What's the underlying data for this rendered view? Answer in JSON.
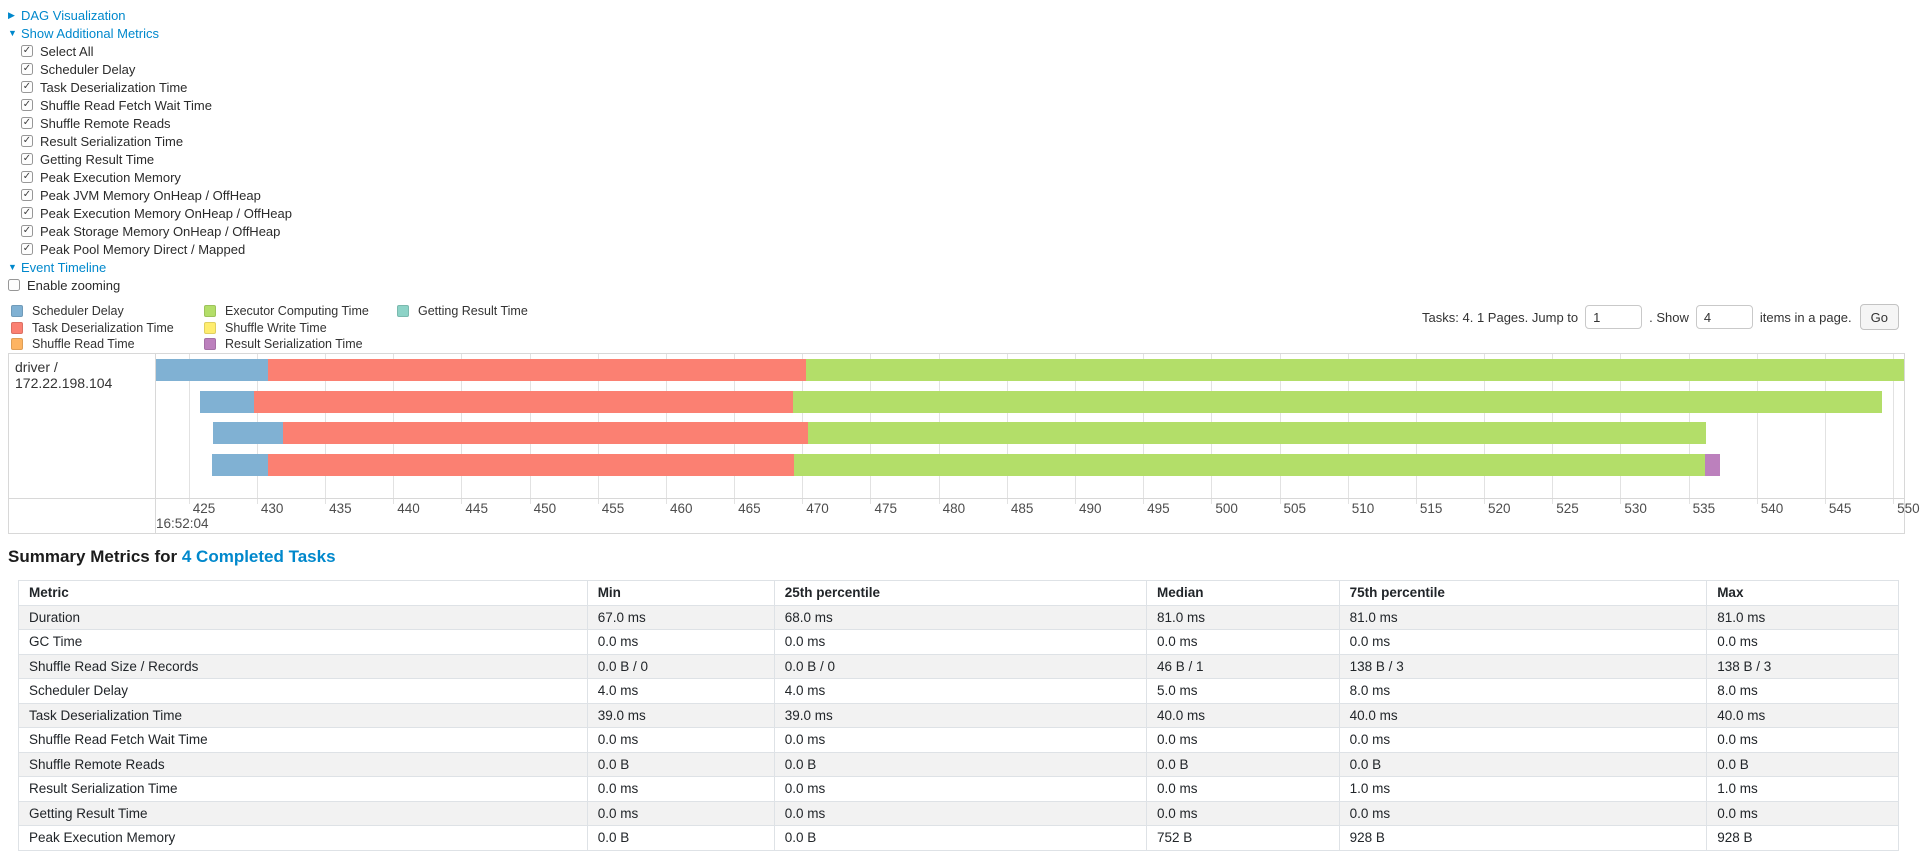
{
  "colors": {
    "link": "#0088cc"
  },
  "controls": {
    "dag_visualization_label": "DAG Visualization",
    "show_additional_metrics_label": "Show Additional Metrics",
    "metric_checkboxes": [
      {
        "label": "Select All",
        "checked": true
      },
      {
        "label": "Scheduler Delay",
        "checked": true
      },
      {
        "label": "Task Deserialization Time",
        "checked": true
      },
      {
        "label": "Shuffle Read Fetch Wait Time",
        "checked": true
      },
      {
        "label": "Shuffle Remote Reads",
        "checked": true
      },
      {
        "label": "Result Serialization Time",
        "checked": true
      },
      {
        "label": "Getting Result Time",
        "checked": true
      },
      {
        "label": "Peak Execution Memory",
        "checked": true
      },
      {
        "label": "Peak JVM Memory OnHeap / OffHeap",
        "checked": true
      },
      {
        "label": "Peak Execution Memory OnHeap / OffHeap",
        "checked": true
      },
      {
        "label": "Peak Storage Memory OnHeap / OffHeap",
        "checked": true
      },
      {
        "label": "Peak Pool Memory Direct / Mapped",
        "checked": true
      }
    ],
    "event_timeline_label": "Event Timeline",
    "enable_zooming": {
      "label": "Enable zooming",
      "checked": false
    }
  },
  "legend": {
    "columns": [
      [
        {
          "label": "Scheduler Delay",
          "color": "#80B1D3"
        },
        {
          "label": "Task Deserialization Time",
          "color": "#FB8072"
        },
        {
          "label": "Shuffle Read Time",
          "color": "#FDB462"
        }
      ],
      [
        {
          "label": "Executor Computing Time",
          "color": "#B3DE69"
        },
        {
          "label": "Shuffle Write Time",
          "color": "#FFED6F"
        },
        {
          "label": "Result Serialization Time",
          "color": "#BC80BD"
        }
      ],
      [
        {
          "label": "Getting Result Time",
          "color": "#8DD3C7"
        }
      ]
    ]
  },
  "pagination": {
    "tasks_text": "Tasks: 4. 1 Pages. Jump to",
    "jump_value": "1",
    "show_text": ". Show",
    "show_value": "4",
    "items_text": "items in a page.",
    "go_label": "Go"
  },
  "chart_data": {
    "type": "timeline",
    "group_label": "driver / 172.22.198.104",
    "x_axis": {
      "min": 422.6,
      "max": 550.8,
      "tick_start": 425,
      "tick_end": 550,
      "tick_step": 5,
      "major_label": "16:52:04"
    },
    "colors": {
      "scheduler_delay": "#80B1D3",
      "task_deserialization": "#FB8072",
      "shuffle_read": "#FDB462",
      "executor_computing": "#B3DE69",
      "shuffle_write": "#FFED6F",
      "result_serialization": "#BC80BD",
      "getting_result": "#8DD3C7"
    },
    "tasks": [
      {
        "segments": [
          {
            "type": "scheduler_delay",
            "start": 422.6,
            "end": 430.8
          },
          {
            "type": "task_deserialization",
            "start": 430.8,
            "end": 470.3
          },
          {
            "type": "executor_computing",
            "start": 470.3,
            "end": 550.8
          }
        ]
      },
      {
        "segments": [
          {
            "type": "scheduler_delay",
            "start": 425.8,
            "end": 429.8
          },
          {
            "type": "task_deserialization",
            "start": 429.8,
            "end": 469.3
          },
          {
            "type": "executor_computing",
            "start": 469.3,
            "end": 549.2
          }
        ]
      },
      {
        "segments": [
          {
            "type": "scheduler_delay",
            "start": 426.8,
            "end": 431.9
          },
          {
            "type": "task_deserialization",
            "start": 431.9,
            "end": 470.4
          },
          {
            "type": "executor_computing",
            "start": 470.4,
            "end": 536.3
          }
        ]
      },
      {
        "segments": [
          {
            "type": "scheduler_delay",
            "start": 426.7,
            "end": 430.8
          },
          {
            "type": "task_deserialization",
            "start": 430.8,
            "end": 469.4
          },
          {
            "type": "executor_computing",
            "start": 469.4,
            "end": 536.2
          },
          {
            "type": "result_serialization",
            "start": 536.2,
            "end": 537.3
          }
        ]
      }
    ]
  },
  "summary": {
    "title_prefix": "Summary Metrics for",
    "title_link": "4 Completed Tasks",
    "table": {
      "headers": [
        "Metric",
        "Min",
        "25th percentile",
        "Median",
        "75th percentile",
        "Max"
      ],
      "rows": [
        {
          "metric": "Duration",
          "values": [
            "67.0 ms",
            "68.0 ms",
            "81.0 ms",
            "81.0 ms",
            "81.0 ms"
          ]
        },
        {
          "metric": "GC Time",
          "values": [
            "0.0 ms",
            "0.0 ms",
            "0.0 ms",
            "0.0 ms",
            "0.0 ms"
          ]
        },
        {
          "metric": "Shuffle Read Size / Records",
          "values": [
            "0.0 B / 0",
            "0.0 B / 0",
            "46 B / 1",
            "138 B / 3",
            "138 B / 3"
          ]
        },
        {
          "metric": "Scheduler Delay",
          "values": [
            "4.0 ms",
            "4.0 ms",
            "5.0 ms",
            "8.0 ms",
            "8.0 ms"
          ]
        },
        {
          "metric": "Task Deserialization Time",
          "values": [
            "39.0 ms",
            "39.0 ms",
            "40.0 ms",
            "40.0 ms",
            "40.0 ms"
          ]
        },
        {
          "metric": "Shuffle Read Fetch Wait Time",
          "values": [
            "0.0 ms",
            "0.0 ms",
            "0.0 ms",
            "0.0 ms",
            "0.0 ms"
          ]
        },
        {
          "metric": "Shuffle Remote Reads",
          "values": [
            "0.0 B",
            "0.0 B",
            "0.0 B",
            "0.0 B",
            "0.0 B"
          ]
        },
        {
          "metric": "Result Serialization Time",
          "values": [
            "0.0 ms",
            "0.0 ms",
            "0.0 ms",
            "1.0 ms",
            "1.0 ms"
          ]
        },
        {
          "metric": "Getting Result Time",
          "values": [
            "0.0 ms",
            "0.0 ms",
            "0.0 ms",
            "0.0 ms",
            "0.0 ms"
          ]
        },
        {
          "metric": "Peak Execution Memory",
          "values": [
            "0.0 B",
            "0.0 B",
            "752 B",
            "928 B",
            "928 B"
          ]
        }
      ]
    }
  }
}
